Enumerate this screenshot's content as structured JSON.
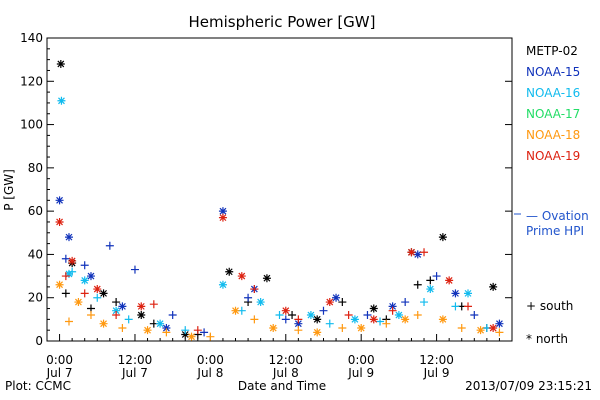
{
  "chart_data": {
    "type": "scatter",
    "title": "Hemispheric Power [GW]",
    "ylabel": "P [GW]",
    "xlabel": "Date and Time",
    "ylim": [
      0,
      140
    ],
    "y_ticks": [
      0,
      20,
      40,
      60,
      80,
      100,
      120,
      140
    ],
    "x_range_hours": [
      -2,
      72
    ],
    "x_ticks": [
      {
        "hour": 0,
        "time": "0:00",
        "date": "Jul 7"
      },
      {
        "hour": 12,
        "time": "12:00",
        "date": "Jul 7"
      },
      {
        "hour": 24,
        "time": "0:00",
        "date": "Jul 8"
      },
      {
        "hour": 36,
        "time": "12:00",
        "date": "Jul 8"
      },
      {
        "hour": 48,
        "time": "0:00",
        "date": "Jul 9"
      },
      {
        "hour": 60,
        "time": "12:00",
        "date": "Jul 9"
      }
    ],
    "footer_left": "Plot: CCMC",
    "footer_right": "2013/07/09 23:15:21",
    "markers": {
      "south": "+ south",
      "north": "* north"
    },
    "model_label": [
      "— Ovation",
      "Prime HPI"
    ],
    "model_color": "#2255cc",
    "series": [
      {
        "name": "METP-02",
        "color": "#000000",
        "north": [
          [
            0.2,
            128
          ],
          [
            2,
            36
          ],
          [
            7,
            22
          ],
          [
            13,
            12
          ],
          [
            20,
            3
          ],
          [
            27,
            32
          ],
          [
            33,
            29
          ],
          [
            41,
            10
          ],
          [
            50,
            15
          ],
          [
            56,
            41
          ],
          [
            61,
            48
          ],
          [
            69,
            25
          ]
        ],
        "south": [
          [
            1,
            22
          ],
          [
            5,
            15
          ],
          [
            9,
            18
          ],
          [
            15,
            8
          ],
          [
            22,
            3
          ],
          [
            30,
            18
          ],
          [
            37,
            12
          ],
          [
            45,
            18
          ],
          [
            52,
            10
          ],
          [
            57,
            26
          ],
          [
            59,
            28
          ],
          [
            64,
            16
          ],
          [
            68,
            6
          ]
        ]
      },
      {
        "name": "NOAA-15",
        "color": "#1133bb",
        "north": [
          [
            0,
            65
          ],
          [
            1.5,
            48
          ],
          [
            5,
            30
          ],
          [
            10,
            16
          ],
          [
            17,
            6
          ],
          [
            26,
            60
          ],
          [
            31,
            24
          ],
          [
            38,
            8
          ],
          [
            44,
            20
          ],
          [
            53,
            16
          ],
          [
            57,
            40
          ],
          [
            63,
            22
          ],
          [
            70,
            8
          ]
        ],
        "south": [
          [
            1,
            38
          ],
          [
            4,
            35
          ],
          [
            8,
            44
          ],
          [
            12,
            33
          ],
          [
            18,
            12
          ],
          [
            23,
            4
          ],
          [
            30,
            20
          ],
          [
            36,
            10
          ],
          [
            42,
            14
          ],
          [
            49,
            12
          ],
          [
            55,
            18
          ],
          [
            60,
            30
          ],
          [
            66,
            12
          ]
        ]
      },
      {
        "name": "NOAA-16",
        "color": "#11bbee",
        "north": [
          [
            0.3,
            111
          ],
          [
            1.5,
            31
          ],
          [
            4,
            28
          ],
          [
            9,
            14
          ],
          [
            16,
            8
          ],
          [
            26,
            26
          ],
          [
            32,
            18
          ],
          [
            40,
            12
          ],
          [
            47,
            10
          ],
          [
            54,
            12
          ],
          [
            59,
            24
          ],
          [
            65,
            22
          ]
        ],
        "south": [
          [
            2,
            32
          ],
          [
            6,
            20
          ],
          [
            11,
            10
          ],
          [
            20,
            5
          ],
          [
            29,
            14
          ],
          [
            35,
            12
          ],
          [
            43,
            8
          ],
          [
            51,
            9
          ],
          [
            58,
            18
          ],
          [
            63,
            16
          ],
          [
            68,
            6
          ]
        ]
      },
      {
        "name": "NOAA-17",
        "color": "#22dd66",
        "north": [],
        "south": []
      },
      {
        "name": "NOAA-18",
        "color": "#ff9911",
        "north": [
          [
            0,
            26
          ],
          [
            3,
            18
          ],
          [
            7,
            8
          ],
          [
            14,
            5
          ],
          [
            21,
            2
          ],
          [
            28,
            14
          ],
          [
            34,
            6
          ],
          [
            41,
            4
          ],
          [
            48,
            6
          ],
          [
            55,
            10
          ],
          [
            61,
            10
          ],
          [
            67,
            5
          ]
        ],
        "south": [
          [
            1.5,
            9
          ],
          [
            5,
            12
          ],
          [
            10,
            6
          ],
          [
            17,
            4
          ],
          [
            24,
            2
          ],
          [
            31,
            10
          ],
          [
            38,
            5
          ],
          [
            45,
            6
          ],
          [
            52,
            8
          ],
          [
            57,
            12
          ],
          [
            64,
            6
          ],
          [
            70,
            4
          ]
        ]
      },
      {
        "name": "NOAA-19",
        "color": "#dd2211",
        "north": [
          [
            0,
            55
          ],
          [
            2,
            37
          ],
          [
            6,
            24
          ],
          [
            13,
            16
          ],
          [
            26,
            57
          ],
          [
            29,
            30
          ],
          [
            36,
            14
          ],
          [
            43,
            18
          ],
          [
            50,
            10
          ],
          [
            56,
            41
          ],
          [
            62,
            28
          ],
          [
            69,
            6
          ]
        ],
        "south": [
          [
            1,
            30
          ],
          [
            4,
            22
          ],
          [
            9,
            12
          ],
          [
            15,
            17
          ],
          [
            22,
            5
          ],
          [
            31,
            24
          ],
          [
            38,
            10
          ],
          [
            46,
            12
          ],
          [
            53,
            14
          ],
          [
            58,
            41
          ],
          [
            65,
            16
          ]
        ]
      }
    ]
  }
}
